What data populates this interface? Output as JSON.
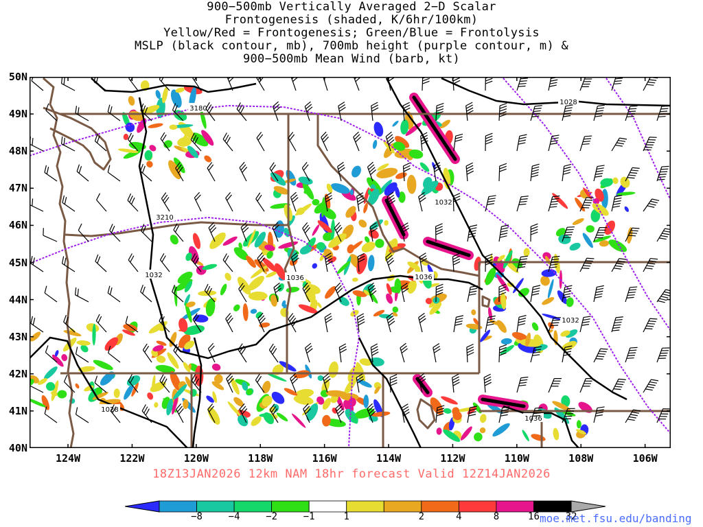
{
  "title": {
    "lines": [
      "900−500mb Vertically Averaged 2−D Scalar",
      "Frontogenesis (shaded, K/6hr/100km)",
      "Yellow/Red = Frontogenesis;  Green/Blue = Frontolysis",
      "MSLP (black contour, mb), 700mb height (purple contour, m) &",
      "900−500mb Mean Wind (barb, kt)"
    ]
  },
  "map": {
    "lat_labels": [
      "50N",
      "49N",
      "48N",
      "47N",
      "46N",
      "45N",
      "44N",
      "43N",
      "42N",
      "41N",
      "40N"
    ],
    "lon_labels": [
      "124W",
      "122W",
      "120W",
      "118W",
      "116W",
      "114W",
      "112W",
      "110W",
      "108W",
      "106W"
    ],
    "lat_range": [
      40,
      50
    ],
    "lon_range": [
      -125.2,
      -105.2
    ],
    "contour_labels": {
      "mslp": [
        "1028",
        "1032",
        "1036",
        "1036",
        "1032",
        "1032",
        "1036",
        "1028"
      ],
      "height_700mb": [
        "3180",
        "3210"
      ]
    },
    "colors": {
      "mslp": "#000000",
      "height_700mb": "#a020f0",
      "borders": "#7a5a45"
    }
  },
  "run_info": "18Z13JAN2026  12km NAM 18hr forecast Valid 12Z14JAN2026",
  "colorbar": {
    "labels": [
      "−8",
      "−4",
      "−2",
      "−1",
      "1",
      "2",
      "4",
      "8",
      "16",
      "32"
    ],
    "colors": [
      "#2b2bff",
      "#1f9bd6",
      "#19c8a0",
      "#15d86a",
      "#2ee015",
      "#ffffff",
      "#e6dc32",
      "#e8a822",
      "#f06a1a",
      "#ff3a3a",
      "#e6158c",
      "#000000",
      "#aaaaaa"
    ]
  },
  "url": "moe.met.fsu.edu/banding"
}
